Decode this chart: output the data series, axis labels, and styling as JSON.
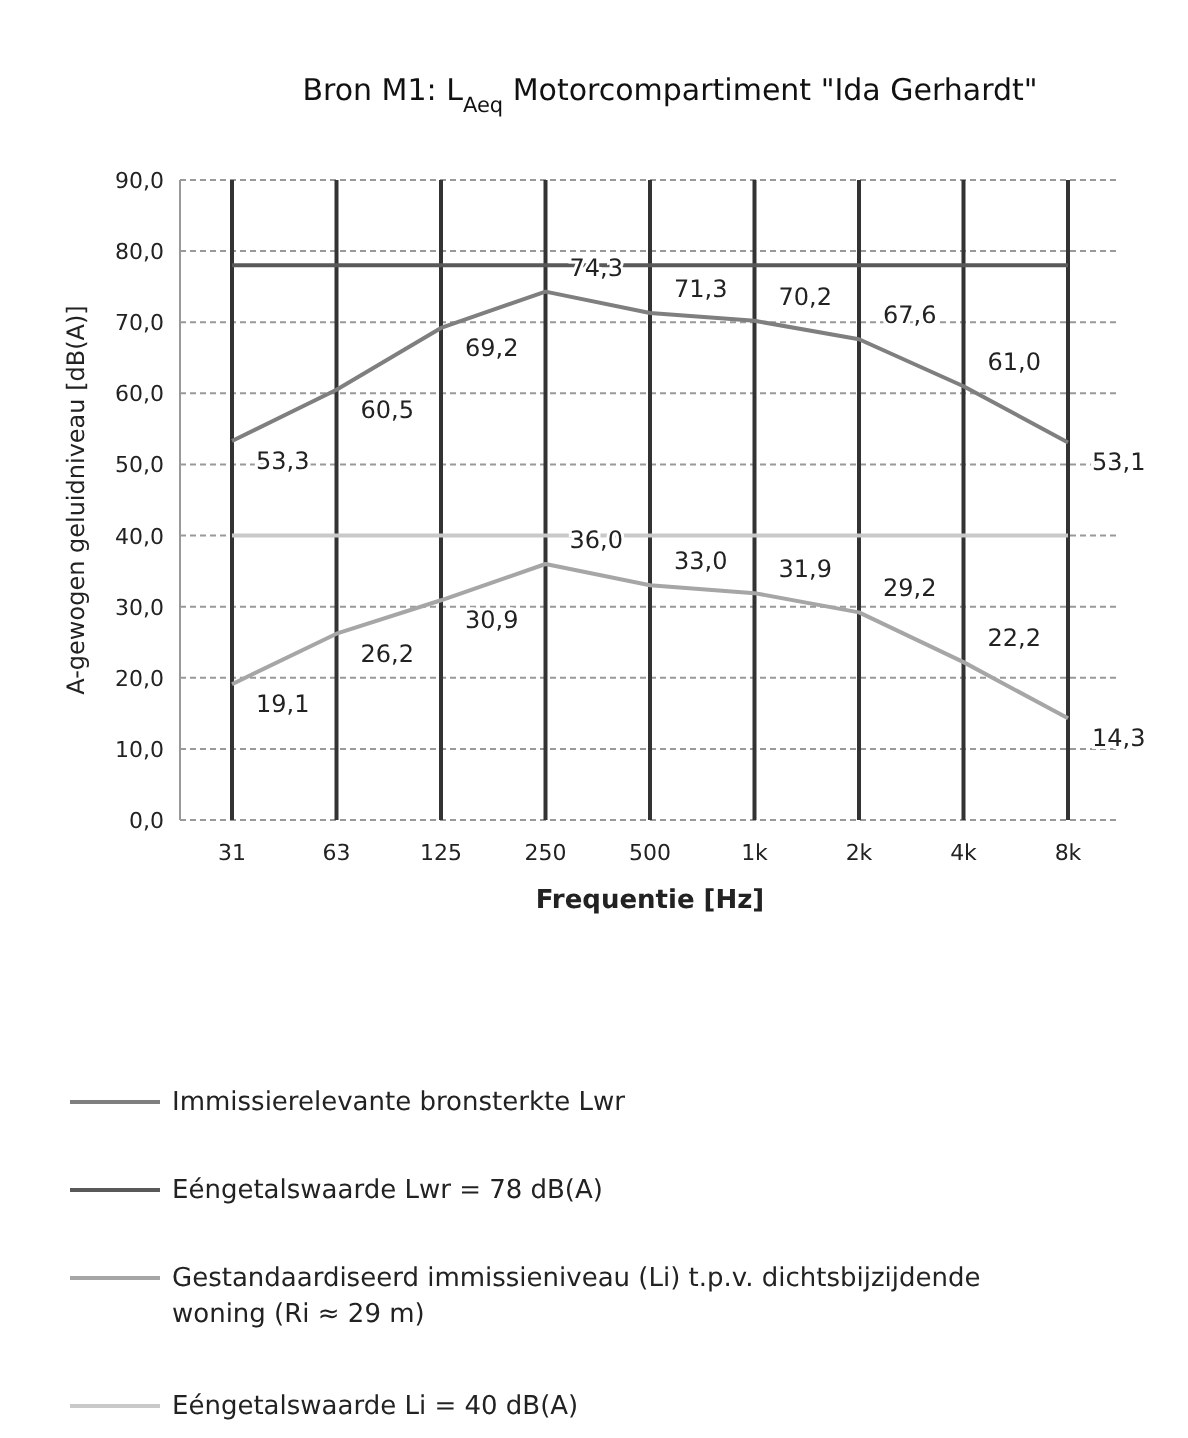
{
  "chart_data": {
    "type": "line",
    "title": "Bron M1: L$_{Aeq}$ Motorcompartiment \"Ida Gerhardt\"",
    "xlabel": "Frequentie [Hz]",
    "ylabel": "A-gewogen geluidniveau [dB(A)]",
    "categories": [
      "31",
      "63",
      "125",
      "250",
      "500",
      "1k",
      "2k",
      "4k",
      "8k"
    ],
    "series": [
      {
        "name": "Immissierelevante bronsterkte Lwr",
        "color": "#7f7f7f",
        "values": [
          53.3,
          60.5,
          69.2,
          74.3,
          71.3,
          70.2,
          67.6,
          61.0,
          53.1
        ],
        "value_labels": [
          "53,3",
          "60,5",
          "69,2",
          "74,3",
          "71,3",
          "70,2",
          "67,6",
          "61,0",
          "53,1"
        ]
      },
      {
        "name": "Eéngetalswaarde Lwr = 78 dB(A)",
        "color": "#595959",
        "values": [
          78,
          78,
          78,
          78,
          78,
          78,
          78,
          78,
          78
        ]
      },
      {
        "name": "Gestandaardiseerd immissieniveau (Li) t.p.v. dichtsbijzijdende woning (Ri ≈ 29 m)",
        "color": "#a6a6a6",
        "values": [
          19.1,
          26.2,
          30.9,
          36.0,
          33.0,
          31.9,
          29.2,
          22.2,
          14.3
        ],
        "value_labels": [
          "19,1",
          "26,2",
          "30,9",
          "36,0",
          "33,0",
          "31,9",
          "29,2",
          "22,2",
          "14,3"
        ]
      },
      {
        "name": "Eéngetalswaarde Li = 40 dB(A)",
        "color": "#c9c9c9",
        "values": [
          40,
          40,
          40,
          40,
          40,
          40,
          40,
          40,
          40
        ]
      }
    ],
    "ylim": [
      0,
      90
    ],
    "yticks": [
      {
        "value": 0,
        "label": "0,0"
      },
      {
        "value": 10,
        "label": "10,0"
      },
      {
        "value": 20,
        "label": "20,0"
      },
      {
        "value": 30,
        "label": "30,0"
      },
      {
        "value": 40,
        "label": "40,0"
      },
      {
        "value": 50,
        "label": "50,0"
      },
      {
        "value": 60,
        "label": "60,0"
      },
      {
        "value": 70,
        "label": "70,0"
      },
      {
        "value": 80,
        "label": "80,0"
      },
      {
        "value": 90,
        "label": "90,0"
      }
    ],
    "grid": true,
    "legend": "bottom",
    "marker": "none",
    "line_style": "solid"
  }
}
